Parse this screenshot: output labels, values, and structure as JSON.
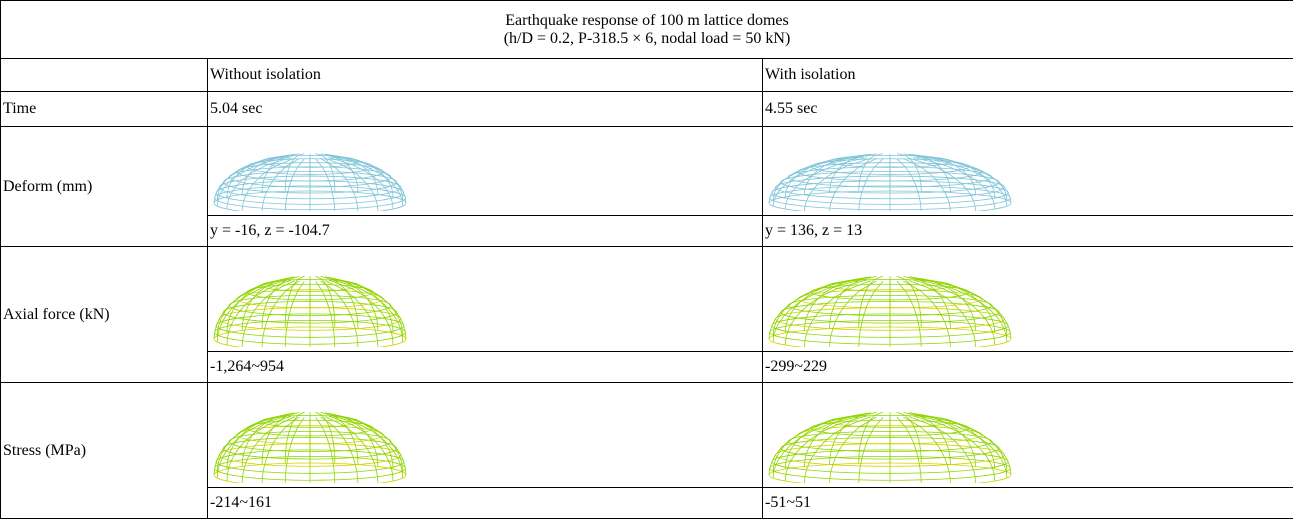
{
  "table": {
    "title": [
      "Earthquake response of 100 m lattice domes",
      "(h/D = 0.2, P-318.5 × 6, nodal load = 50 kN)"
    ],
    "header": [
      "Without isolation",
      "With isolation"
    ],
    "rows": [
      {
        "label": "Time",
        "values": [
          "5.04 sec",
          "4.55 sec"
        ]
      },
      {
        "label": "Deform (mm)",
        "values": [
          "y = -16, z = -104.7",
          "y = 136, z = 13"
        ]
      },
      {
        "label": "Axial force (kN)",
        "values": [
          "-1,264~954",
          "-299~229"
        ]
      },
      {
        "label": "Stress (MPa)",
        "values": [
          "-214~161",
          "-51~51"
        ]
      }
    ]
  }
}
